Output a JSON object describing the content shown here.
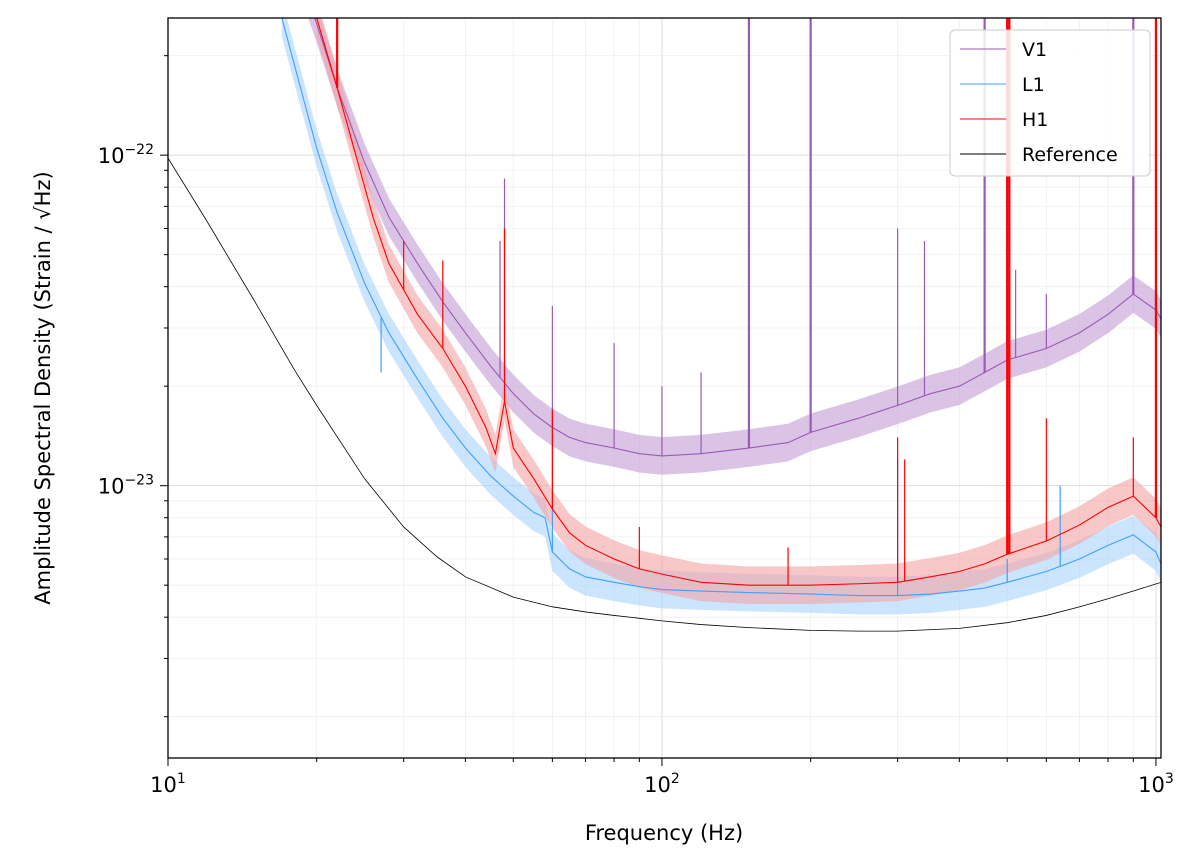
{
  "chart_data": {
    "type": "line",
    "title": "",
    "xlabel": "Frequency (Hz)",
    "ylabel": "Amplitude Spectral Density (Strain / √Hz)",
    "xscale": "log",
    "yscale": "log",
    "xlim": [
      10,
      1024
    ],
    "ylim": [
      1.5e-24,
      2.6e-22
    ],
    "grid": true,
    "legend_position": "top-right",
    "x_tick_labels": [
      {
        "value": 10,
        "base": "10",
        "exp": "1"
      },
      {
        "value": 100,
        "base": "10",
        "exp": "2"
      },
      {
        "value": 1000,
        "base": "10",
        "exp": "3"
      }
    ],
    "y_tick_labels": [
      {
        "value": 1e-23,
        "base": "10",
        "exp": "−23"
      },
      {
        "value": 1e-22,
        "base": "10",
        "exp": "−22"
      }
    ],
    "series": [
      {
        "name": "V1",
        "color": "#9b59b6",
        "band_color": "#c39bd3",
        "x": [
          17,
          20,
          22,
          25,
          28,
          32,
          36,
          40,
          45,
          50,
          55,
          60,
          65,
          70,
          80,
          90,
          100,
          120,
          150,
          180,
          200,
          250,
          300,
          350,
          400,
          450,
          500,
          600,
          700,
          800,
          900,
          1000,
          1024
        ],
        "y": [
          5e-22,
          2.5e-22,
          1.6e-22,
          9.5e-23,
          6.5e-23,
          4.7e-23,
          3.6e-23,
          2.9e-23,
          2.3e-23,
          1.9e-23,
          1.65e-23,
          1.5e-23,
          1.4e-23,
          1.35e-23,
          1.3e-23,
          1.25e-23,
          1.23e-23,
          1.25e-23,
          1.3e-23,
          1.35e-23,
          1.45e-23,
          1.6e-23,
          1.75e-23,
          1.9e-23,
          2e-23,
          2.2e-23,
          2.4e-23,
          2.6e-23,
          2.9e-23,
          3.3e-23,
          3.8e-23,
          3.4e-23,
          3.2e-23
        ],
        "lines": [
          {
            "x": 47,
            "y": 5.5e-23
          },
          {
            "x": 48,
            "y": 8.5e-23
          },
          {
            "x": 60,
            "y": 3.5e-23
          },
          {
            "x": 80,
            "y": 2.7e-23
          },
          {
            "x": 100,
            "y": 2e-23
          },
          {
            "x": 120,
            "y": 2.2e-23
          },
          {
            "x": 150,
            "y": 2.6e-22
          },
          {
            "x": 200,
            "y": 2.6e-22
          },
          {
            "x": 300,
            "y": 6e-23
          },
          {
            "x": 340,
            "y": 5.5e-23
          },
          {
            "x": 450,
            "y": 2.6e-22
          },
          {
            "x": 500,
            "y": 2.6e-22
          },
          {
            "x": 520,
            "y": 4.5e-23
          },
          {
            "x": 600,
            "y": 3.8e-23
          },
          {
            "x": 900,
            "y": 2.6e-22
          },
          {
            "x": 1000,
            "y": 6.5e-23
          }
        ]
      },
      {
        "name": "L1",
        "color": "#3fa0ff",
        "band_color": "#a8d4ff",
        "x": [
          17,
          20,
          22,
          25,
          28,
          32,
          36,
          40,
          45,
          50,
          55,
          58,
          60,
          65,
          70,
          80,
          90,
          100,
          120,
          150,
          200,
          250,
          300,
          350,
          400,
          450,
          500,
          600,
          700,
          800,
          900,
          1000,
          1024
        ],
        "y": [
          2.6e-22,
          1.05e-22,
          6.7e-23,
          4.1e-23,
          2.9e-23,
          2.1e-23,
          1.6e-23,
          1.3e-23,
          1.07e-23,
          9.3e-24,
          8.3e-24,
          8e-24,
          6.3e-24,
          5.6e-24,
          5.3e-24,
          5.1e-24,
          4.95e-24,
          4.85e-24,
          4.8e-24,
          4.75e-24,
          4.7e-24,
          4.65e-24,
          4.65e-24,
          4.7e-24,
          4.8e-24,
          4.9e-24,
          5.1e-24,
          5.5e-24,
          6e-24,
          6.6e-24,
          7.1e-24,
          6.3e-24,
          5.8e-24
        ],
        "lines": [
          {
            "x": 27,
            "y": 2.2e-23
          },
          {
            "x": 60,
            "y": 1.6e-23
          },
          {
            "x": 300,
            "y": 1.2e-23
          },
          {
            "x": 500,
            "y": 6e-24
          },
          {
            "x": 640,
            "y": 1e-23
          }
        ]
      },
      {
        "name": "H1",
        "color": "#ff0000",
        "band_color": "#f4a3a3",
        "x": [
          20,
          22,
          24,
          26,
          28,
          32,
          36,
          40,
          44,
          46,
          48,
          50,
          55,
          60,
          65,
          70,
          80,
          90,
          100,
          120,
          150,
          200,
          250,
          300,
          350,
          400,
          450,
          500,
          600,
          700,
          800,
          900,
          1000,
          1024
        ],
        "y": [
          2.6e-22,
          1.6e-22,
          1e-22,
          6.5e-23,
          4.7e-23,
          3.3e-23,
          2.6e-23,
          2e-23,
          1.5e-23,
          1.25e-23,
          1.8e-23,
          1.3e-23,
          1.05e-23,
          8.5e-24,
          7.2e-24,
          6.6e-24,
          6e-24,
          5.6e-24,
          5.4e-24,
          5.1e-24,
          5e-24,
          5e-24,
          5.05e-24,
          5.1e-24,
          5.3e-24,
          5.5e-24,
          5.8e-24,
          6.2e-24,
          6.8e-24,
          7.6e-24,
          8.6e-24,
          9.3e-24,
          8e-24,
          7.5e-24
        ],
        "lines": [
          {
            "x": 22,
            "y": 2.6e-22
          },
          {
            "x": 30,
            "y": 5.5e-23
          },
          {
            "x": 36,
            "y": 4.8e-23
          },
          {
            "x": 48,
            "y": 6e-23
          },
          {
            "x": 60,
            "y": 1.7e-23
          },
          {
            "x": 90,
            "y": 7.5e-24
          },
          {
            "x": 180,
            "y": 6.5e-24
          },
          {
            "x": 300,
            "y": 1.4e-23
          },
          {
            "x": 310,
            "y": 1.2e-23
          },
          {
            "x": 500,
            "y": 2.6e-22
          },
          {
            "x": 505,
            "y": 2.6e-22
          },
          {
            "x": 600,
            "y": 1.6e-23
          },
          {
            "x": 900,
            "y": 1.4e-23
          },
          {
            "x": 1000,
            "y": 2.6e-22
          }
        ]
      },
      {
        "name": "Reference",
        "color": "#000000",
        "x": [
          10,
          12,
          15,
          18,
          20,
          25,
          30,
          35,
          40,
          50,
          60,
          70,
          80,
          100,
          120,
          150,
          200,
          250,
          300,
          400,
          500,
          600,
          700,
          800,
          900,
          1024
        ],
        "y": [
          9.8e-23,
          6.3e-23,
          3.6e-23,
          2.25e-23,
          1.75e-23,
          1.05e-23,
          7.5e-24,
          6.1e-24,
          5.3e-24,
          4.6e-24,
          4.3e-24,
          4.15e-24,
          4.05e-24,
          3.9e-24,
          3.8e-24,
          3.72e-24,
          3.65e-24,
          3.63e-24,
          3.63e-24,
          3.7e-24,
          3.85e-24,
          4.05e-24,
          4.3e-24,
          4.55e-24,
          4.8e-24,
          5.1e-24
        ]
      }
    ],
    "legend_order": [
      "V1",
      "L1",
      "H1",
      "Reference"
    ]
  }
}
